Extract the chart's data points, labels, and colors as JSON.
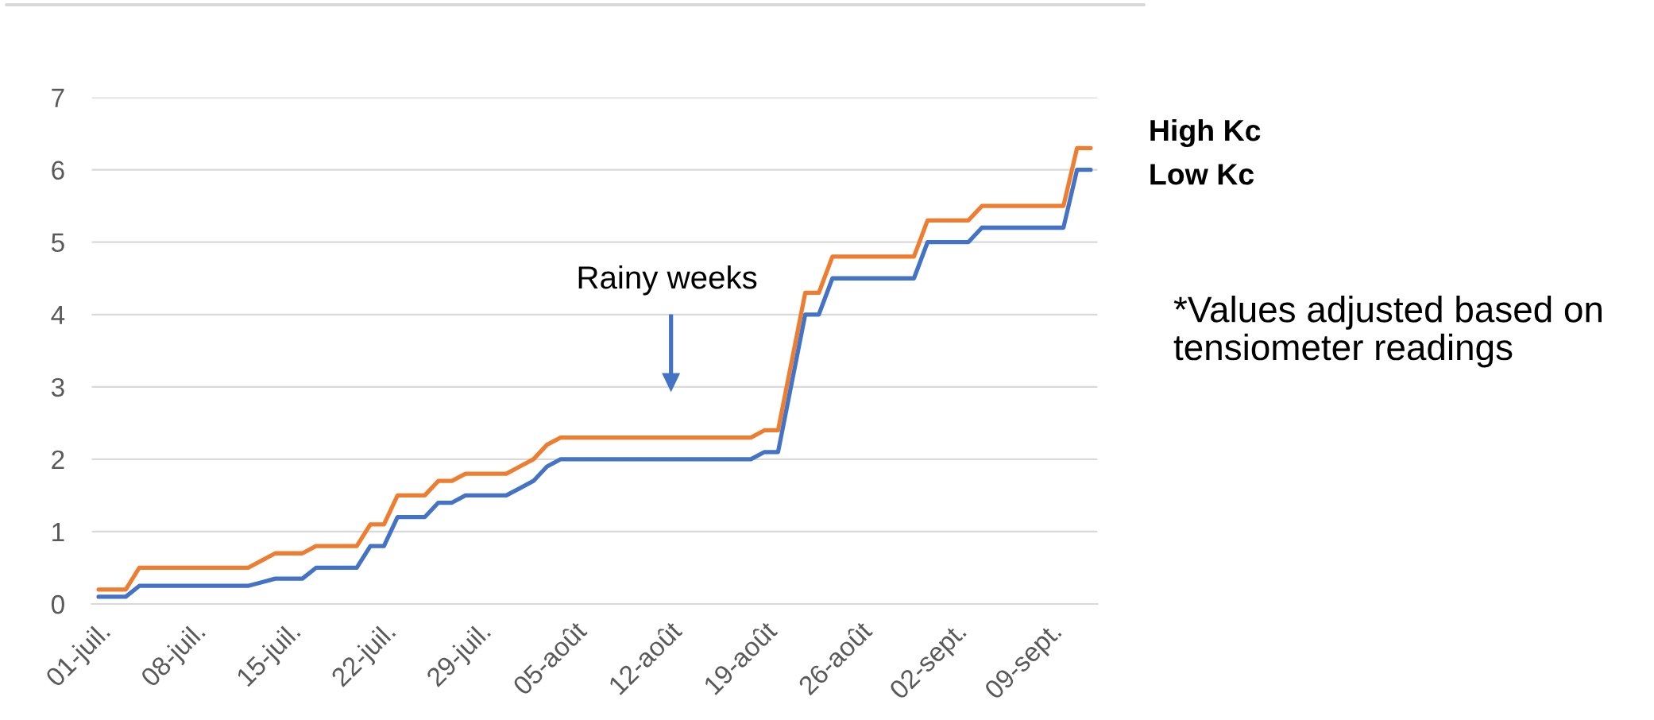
{
  "chart_data": {
    "type": "line",
    "categories": [
      "01-juil.",
      null,
      null,
      null,
      null,
      null,
      null,
      "08-juil.",
      null,
      null,
      null,
      null,
      null,
      null,
      "15-juil.",
      null,
      null,
      null,
      null,
      null,
      null,
      "22-juil.",
      null,
      null,
      null,
      null,
      null,
      null,
      "29-juil.",
      null,
      null,
      null,
      null,
      null,
      null,
      "05-août",
      null,
      null,
      null,
      null,
      null,
      null,
      "12-août",
      null,
      null,
      null,
      null,
      null,
      null,
      "19-août",
      null,
      null,
      null,
      null,
      null,
      null,
      "26-août",
      null,
      null,
      null,
      null,
      null,
      null,
      "02-sept.",
      null,
      null,
      null,
      null,
      null,
      null,
      "09-sept.",
      null,
      null,
      null
    ],
    "series": [
      {
        "name": "High Kc",
        "color": "#ed7d31",
        "values": [
          0.2,
          0.2,
          0.2,
          0.5,
          0.5,
          0.5,
          0.5,
          0.5,
          0.5,
          0.5,
          0.5,
          0.5,
          0.6,
          0.7,
          0.7,
          0.7,
          0.8,
          0.8,
          0.8,
          0.8,
          1.1,
          1.1,
          1.5,
          1.5,
          1.5,
          1.7,
          1.7,
          1.8,
          1.8,
          1.8,
          1.8,
          1.9,
          2.0,
          2.2,
          2.3,
          2.3,
          2.3,
          2.3,
          2.3,
          2.3,
          2.3,
          2.3,
          2.3,
          2.3,
          2.3,
          2.3,
          2.3,
          2.3,
          2.3,
          2.4,
          2.4,
          3.35,
          4.3,
          4.3,
          4.8,
          4.8,
          4.8,
          4.8,
          4.8,
          4.8,
          4.8,
          5.3,
          5.3,
          5.3,
          5.3,
          5.5,
          5.5,
          5.5,
          5.5,
          5.5,
          5.5,
          5.5,
          6.3,
          6.3
        ]
      },
      {
        "name": "Low Kc",
        "color": "#4472c4",
        "values": [
          0.1,
          0.1,
          0.1,
          0.25,
          0.25,
          0.25,
          0.25,
          0.25,
          0.25,
          0.25,
          0.25,
          0.25,
          0.3,
          0.35,
          0.35,
          0.35,
          0.5,
          0.5,
          0.5,
          0.5,
          0.8,
          0.8,
          1.2,
          1.2,
          1.2,
          1.4,
          1.4,
          1.5,
          1.5,
          1.5,
          1.5,
          1.6,
          1.7,
          1.9,
          2.0,
          2.0,
          2.0,
          2.0,
          2.0,
          2.0,
          2.0,
          2.0,
          2.0,
          2.0,
          2.0,
          2.0,
          2.0,
          2.0,
          2.0,
          2.1,
          2.1,
          3.05,
          4.0,
          4.0,
          4.5,
          4.5,
          4.5,
          4.5,
          4.5,
          4.5,
          4.5,
          5.0,
          5.0,
          5.0,
          5.0,
          5.2,
          5.2,
          5.2,
          5.2,
          5.2,
          5.2,
          5.2,
          6.0,
          6.0
        ]
      }
    ],
    "ylim": [
      0,
      7
    ],
    "yticks": [
      0,
      1,
      2,
      3,
      4,
      5,
      6,
      7
    ],
    "grid": "y",
    "annotations": [
      "Rainy weeks",
      "*Values adjusted based on\ntensiometer readings"
    ]
  }
}
